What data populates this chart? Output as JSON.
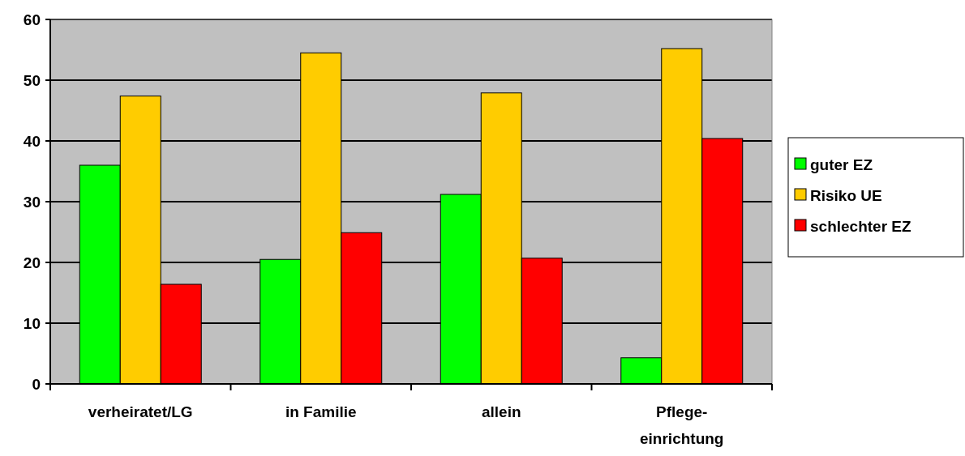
{
  "chart_data": {
    "type": "bar",
    "categories": [
      "verheiratet/LG",
      "in Familie",
      "allein",
      "Pflege-einrichtung"
    ],
    "series": [
      {
        "name": "guter EZ",
        "color": "#00ff00",
        "values": [
          36,
          20.5,
          31.2,
          4.3
        ]
      },
      {
        "name": "Risiko UE",
        "color": "#ffcc00",
        "values": [
          47.4,
          54.5,
          47.9,
          55.2
        ]
      },
      {
        "name": "schlechter EZ",
        "color": "#ff0000",
        "values": [
          16.4,
          24.9,
          20.7,
          40.4
        ]
      }
    ],
    "ylim": [
      0,
      60
    ],
    "yticks": [
      0,
      10,
      20,
      30,
      40,
      50,
      60
    ],
    "grid": "y",
    "legend": "right"
  }
}
